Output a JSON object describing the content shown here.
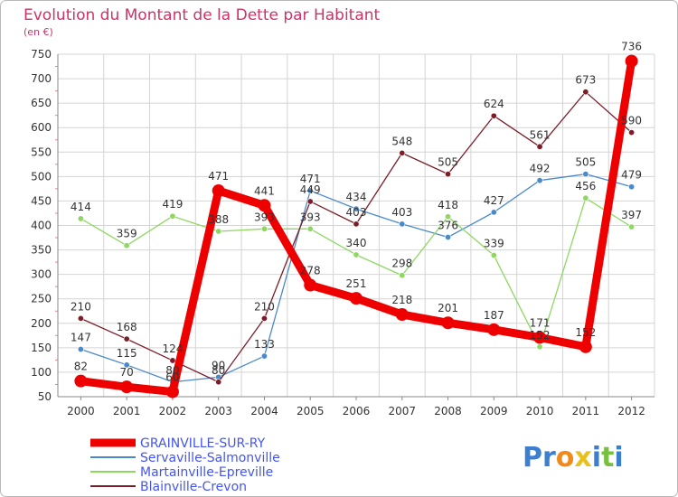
{
  "chart_data": {
    "type": "line",
    "title": "Evolution du Montant de la Dette par Habitant",
    "subtitle": "(en €)",
    "x": [
      "2000",
      "2001",
      "2002",
      "2003",
      "2004",
      "2005",
      "2006",
      "2007",
      "2008",
      "2009",
      "2010",
      "2011",
      "2012"
    ],
    "ylim": [
      50,
      750
    ],
    "yticks": [
      50,
      100,
      150,
      200,
      250,
      300,
      350,
      400,
      450,
      500,
      550,
      600,
      650,
      700,
      750
    ],
    "grid": true,
    "legend_position": "bottom-left",
    "series": [
      {
        "name": "Servaville-Salmonville",
        "color": "#4a8ac8",
        "values": [
          147,
          115,
          80,
          90,
          133,
          471,
          434,
          403,
          376,
          427,
          492,
          505,
          479
        ]
      },
      {
        "name": "Martainville-Epreville",
        "color": "#8ed860",
        "values": [
          414,
          359,
          419,
          388,
          393,
          393,
          340,
          298,
          418,
          339,
          152,
          456,
          397
        ]
      },
      {
        "name": "Blainville-Crevon",
        "color": "#7a1f2a",
        "values": [
          210,
          168,
          124,
          80,
          210,
          449,
          403,
          548,
          505,
          624,
          561,
          673,
          590
        ]
      },
      {
        "name": "GRAINVILLE-SUR-RY",
        "color": "#ee0000",
        "values": [
          82,
          70,
          60,
          471,
          441,
          278,
          251,
          218,
          201,
          187,
          171,
          152,
          736
        ]
      }
    ],
    "legend_order": [
      "GRAINVILLE-SUR-RY",
      "Servaville-Salmonville",
      "Martainville-Epreville",
      "Blainville-Crevon"
    ]
  },
  "logo": {
    "text": "Proxiti",
    "letters": [
      "P",
      "r",
      "o",
      "x",
      "i",
      "t",
      "i"
    ],
    "colors": [
      "#3a7fd0",
      "#3a7fd0",
      "#f08a1a",
      "#e8c020",
      "#3a7fd0",
      "#7ac040",
      "#3a7fd0"
    ]
  }
}
